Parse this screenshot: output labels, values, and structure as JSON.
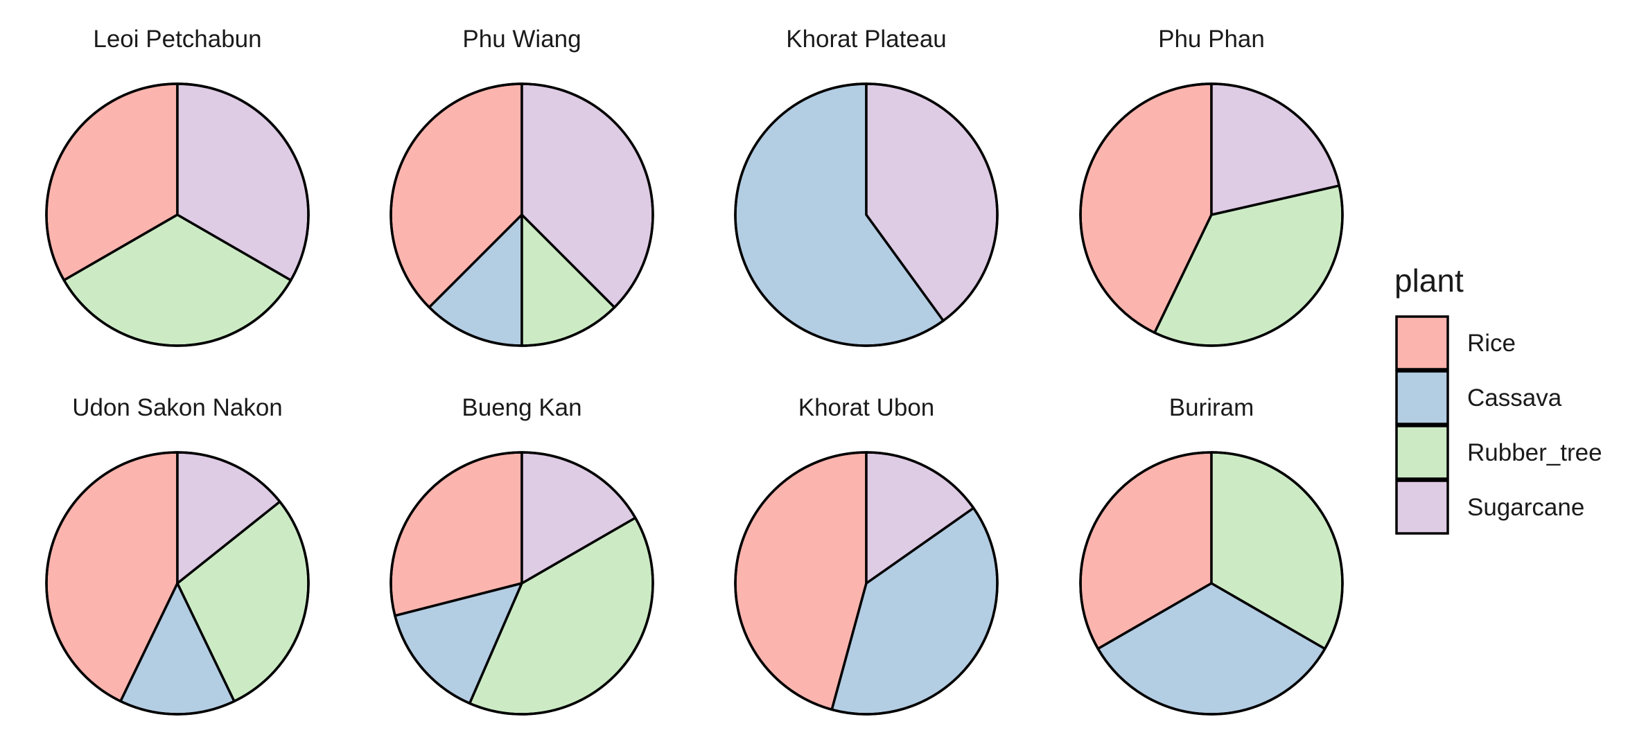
{
  "chart_data": {
    "type": "pie",
    "facet_count": 8,
    "categories": [
      "Rice",
      "Cassava",
      "Rubber_tree",
      "Sugarcane"
    ],
    "colors": {
      "Rice": "#FBB4AE",
      "Cassava": "#B3CDE3",
      "Rubber_tree": "#CCEBC5",
      "Sugarcane": "#DECBE4"
    },
    "legend": {
      "title": "plant",
      "position": "right",
      "items": [
        "Rice",
        "Cassava",
        "Rubber_tree",
        "Sugarcane"
      ]
    },
    "facets": [
      {
        "title": "Leoi  Petchabun",
        "values": {
          "Rice": 1,
          "Cassava": 0,
          "Rubber_tree": 1,
          "Sugarcane": 1
        }
      },
      {
        "title": "Phu  Wiang",
        "values": {
          "Rice": 3,
          "Cassava": 1,
          "Rubber_tree": 1,
          "Sugarcane": 3
        }
      },
      {
        "title": "Khorat  Plateau",
        "values": {
          "Rice": 0,
          "Cassava": 3,
          "Rubber_tree": 0,
          "Sugarcane": 2
        }
      },
      {
        "title": "Phu  Phan",
        "values": {
          "Rice": 3,
          "Cassava": 0,
          "Rubber_tree": 2.5,
          "Sugarcane": 1.5
        }
      },
      {
        "title": "Udon  Sakon  Nakon",
        "values": {
          "Rice": 3,
          "Cassava": 1,
          "Rubber_tree": 2,
          "Sugarcane": 1
        }
      },
      {
        "title": "Bueng  Kan",
        "values": {
          "Rice": 2,
          "Cassava": 1,
          "Rubber_tree": 2.75,
          "Sugarcane": 1.15
        }
      },
      {
        "title": "Khorat  Ubon",
        "values": {
          "Rice": 2.7,
          "Cassava": 2.3,
          "Rubber_tree": 0,
          "Sugarcane": 0.9
        }
      },
      {
        "title": "Buriram",
        "values": {
          "Rice": 1,
          "Cassava": 1,
          "Rubber_tree": 1,
          "Sugarcane": 0
        }
      }
    ]
  }
}
